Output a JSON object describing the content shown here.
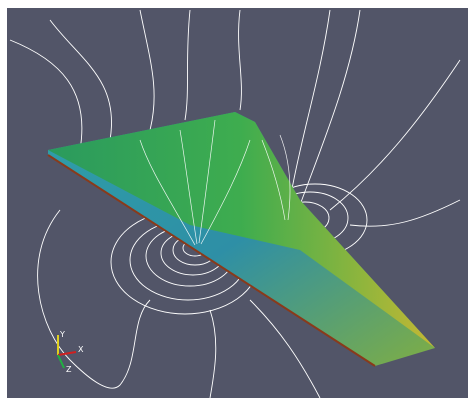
{
  "axes_triad": {
    "labels": [
      "Y",
      "X",
      "Z"
    ]
  }
}
